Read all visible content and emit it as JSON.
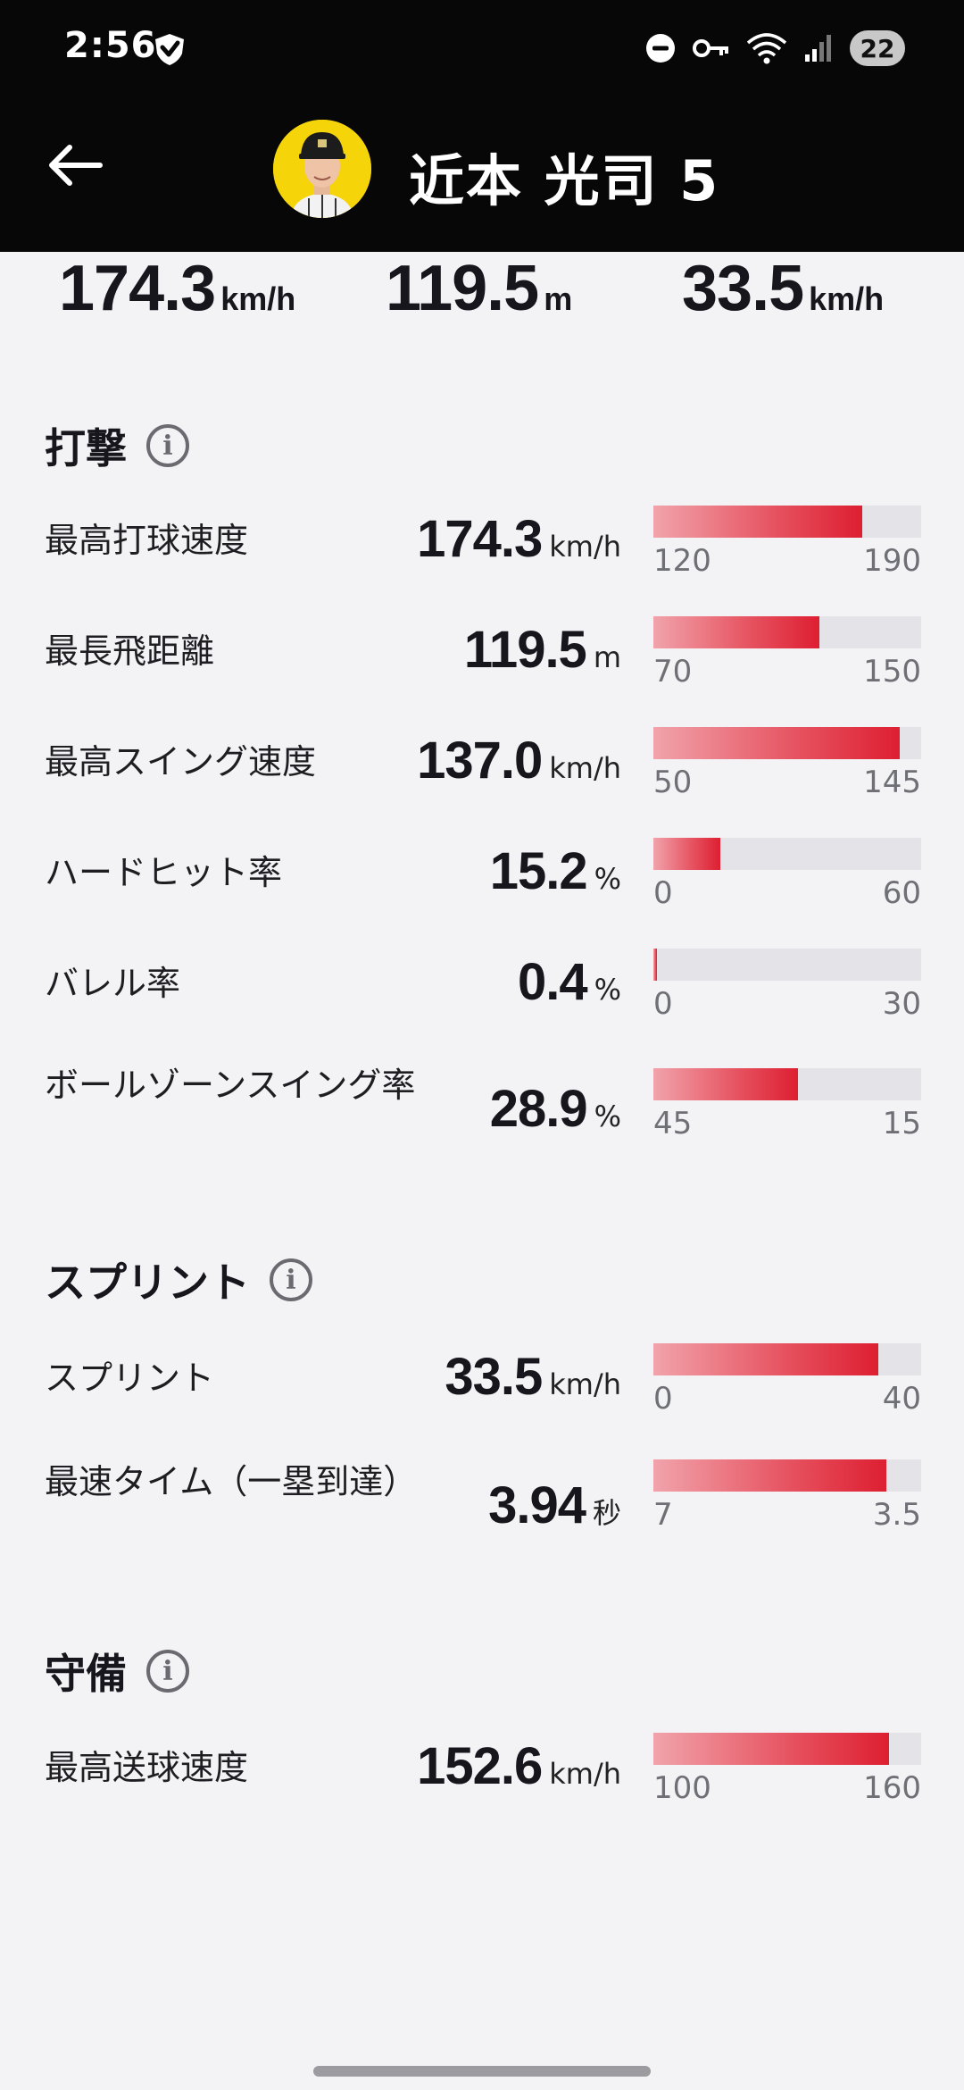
{
  "status_bar": {
    "time": "2:56",
    "battery": "22"
  },
  "header": {
    "player_name": "近本 光司 5"
  },
  "summary": [
    {
      "value": "174.3",
      "unit": "km/h"
    },
    {
      "value": "119.5",
      "unit": "m"
    },
    {
      "value": "33.5",
      "unit": "km/h"
    }
  ],
  "sections": {
    "batting": {
      "title": "打撃"
    },
    "sprint": {
      "title": "スプリント"
    },
    "defense": {
      "title": "守備"
    }
  },
  "metrics": [
    {
      "label": "最高打球速度",
      "value": "174.3",
      "unit": "km/h",
      "range_low": "120",
      "range_high": "190",
      "fill_fraction": 0.78
    },
    {
      "label": "最長飛距離",
      "value": "119.5",
      "unit": "m",
      "range_low": "70",
      "range_high": "150",
      "fill_fraction": 0.62
    },
    {
      "label": "最高スイング速度",
      "value": "137.0",
      "unit": "km/h",
      "range_low": "50",
      "range_high": "145",
      "fill_fraction": 0.92
    },
    {
      "label": "ハードヒット率",
      "value": "15.2",
      "unit": "%",
      "range_low": "0",
      "range_high": "60",
      "fill_fraction": 0.25
    },
    {
      "label": "バレル率",
      "value": "0.4",
      "unit": "%",
      "range_low": "0",
      "range_high": "30",
      "fill_fraction": 0.013
    },
    {
      "label": "ボールゾーンスイング率",
      "value": "28.9",
      "unit": "%",
      "range_low": "45",
      "range_high": "15",
      "fill_fraction": 0.54
    },
    {
      "label": "スプリント",
      "value": "33.5",
      "unit": "km/h",
      "range_low": "0",
      "range_high": "40",
      "fill_fraction": 0.84
    },
    {
      "label": "最速タイム（一塁到達）",
      "value": "3.94",
      "unit": "秒",
      "range_low": "7",
      "range_high": "3.5",
      "fill_fraction": 0.87
    },
    {
      "label": "最高送球速度",
      "value": "152.6",
      "unit": "km/h",
      "range_low": "100",
      "range_high": "160",
      "fill_fraction": 0.88
    }
  ],
  "colors": {
    "header_bg": "#070707",
    "bar_fill_start": "#f1a3ab",
    "bar_fill_end": "#dd1f31",
    "bar_track": "#e3e3e8",
    "page_bg": "#f3f3f6"
  }
}
